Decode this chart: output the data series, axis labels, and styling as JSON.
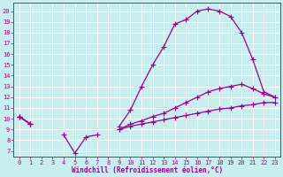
{
  "xlabel": "Windchill (Refroidissement éolien,°C)",
  "bg_color": "#c8eef0",
  "line_color": "#990099",
  "grid_color": "#ffffff",
  "x_ticks": [
    0,
    1,
    2,
    3,
    4,
    5,
    6,
    7,
    8,
    9,
    10,
    11,
    12,
    13,
    14,
    15,
    16,
    17,
    18,
    19,
    20,
    21,
    22,
    23
  ],
  "y_ticks": [
    7,
    8,
    9,
    10,
    11,
    12,
    13,
    14,
    15,
    16,
    17,
    18,
    19,
    20
  ],
  "ylim": [
    6.5,
    20.8
  ],
  "xlim": [
    -0.5,
    23.5
  ],
  "lines": [
    {
      "x": [
        0,
        1,
        2,
        3,
        4,
        5,
        6,
        7,
        8,
        9,
        10,
        11,
        12,
        13,
        14,
        15,
        16,
        17,
        18,
        19,
        20,
        21,
        22,
        23
      ],
      "y": [
        10.2,
        9.5,
        null,
        null,
        null,
        null,
        null,
        null,
        null,
        9.3,
        10.8,
        13.0,
        15.0,
        16.7,
        18.8,
        19.2,
        20.0,
        20.2,
        20.0,
        19.5,
        18.0,
        15.5,
        12.5,
        12.0
      ]
    },
    {
      "x": [
        0,
        1,
        2,
        3,
        4,
        5,
        6,
        7,
        8,
        9,
        10,
        11,
        12,
        13,
        14,
        15,
        16,
        17,
        18,
        19,
        20,
        21,
        22,
        23
      ],
      "y": [
        10.2,
        9.5,
        null,
        null,
        null,
        null,
        null,
        null,
        null,
        9.0,
        9.5,
        9.8,
        10.2,
        10.5,
        11.0,
        11.5,
        12.0,
        12.5,
        12.8,
        13.0,
        13.2,
        12.8,
        12.3,
        12.0
      ]
    },
    {
      "x": [
        0,
        1,
        2,
        3,
        4,
        5,
        6,
        7,
        8,
        9,
        10,
        11,
        12,
        13,
        14,
        15,
        16,
        17,
        18,
        19,
        20,
        21,
        22,
        23
      ],
      "y": [
        10.2,
        9.5,
        null,
        null,
        null,
        null,
        null,
        null,
        null,
        9.0,
        9.3,
        9.5,
        9.7,
        9.9,
        10.1,
        10.3,
        10.5,
        10.7,
        10.9,
        11.0,
        11.2,
        11.3,
        11.5,
        11.5
      ]
    },
    {
      "x": [
        0,
        1,
        2,
        3,
        4,
        5,
        6,
        7,
        8
      ],
      "y": [
        10.2,
        9.5,
        null,
        null,
        8.5,
        6.8,
        8.3,
        8.5,
        null
      ]
    }
  ],
  "marker": "+",
  "markersize": 4,
  "linewidth": 0.9
}
